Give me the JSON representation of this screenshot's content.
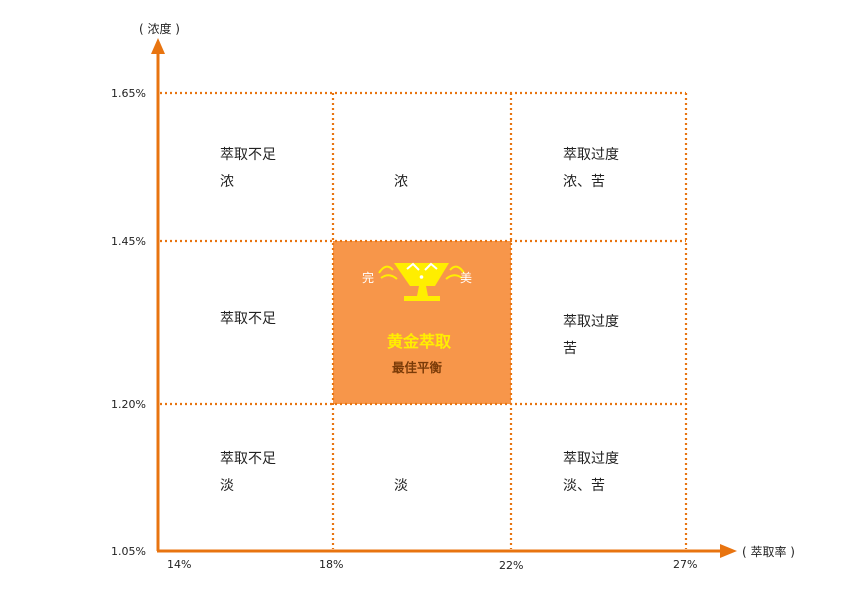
{
  "axes": {
    "y_title": "( 浓度 )",
    "x_title": "( 萃取率 )",
    "y_ticks": [
      "1.65%",
      "1.45%",
      "1.20%",
      "1.05%"
    ],
    "x_ticks": [
      "14%",
      "18%",
      "22%",
      "27%"
    ]
  },
  "cells": {
    "top_left": [
      "萃取不足",
      "浓"
    ],
    "top_middle": [
      "浓"
    ],
    "top_right": [
      "萃取过度",
      "浓、苦"
    ],
    "middle_left": [
      "萃取不足"
    ],
    "center": {
      "perfect_left": "完",
      "perfect_right": "美",
      "title": "黄金萃取",
      "subtitle": "最佳平衡"
    },
    "middle_right": [
      "萃取过度",
      "苦"
    ],
    "bottom_left": [
      "萃取不足",
      "淡"
    ],
    "bottom_middle": [
      "淡"
    ],
    "bottom_right": [
      "萃取过度",
      "淡、苦"
    ]
  },
  "colors": {
    "axis": "#e87410",
    "grid_dots": "#e87410",
    "center_fill": "#f7964a",
    "center_title": "#ffee00",
    "center_subtitle": "#7a3b08",
    "trophy": "#ffee00"
  },
  "icons": [
    "trophy-icon"
  ]
}
